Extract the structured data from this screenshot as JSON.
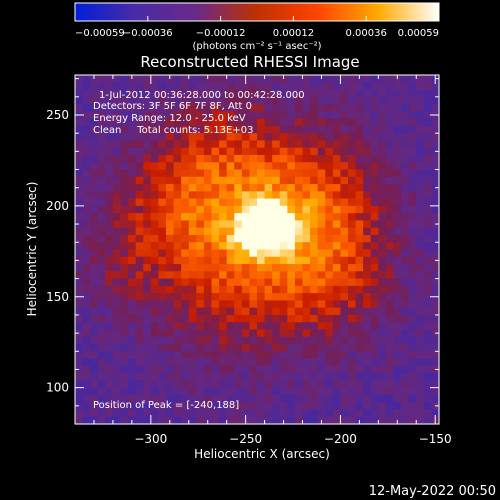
{
  "chart_data": {
    "type": "heatmap",
    "title": "Reconstructed RHESSI Image",
    "xlabel": "Heliocentric X (arcsec)",
    "ylabel": "Heliocentric Y (arcsec)",
    "xlim": [
      -340,
      -148
    ],
    "ylim": [
      80,
      272
    ],
    "x_ticks": [
      -300,
      -250,
      -200,
      -150
    ],
    "x_tick_labels": [
      "−300",
      "−250",
      "−200",
      "−150"
    ],
    "y_ticks": [
      100,
      150,
      200,
      250
    ],
    "y_tick_labels": [
      "100",
      "150",
      "200",
      "250"
    ],
    "colorbar": {
      "range": [
        -0.00059,
        0.00059
      ],
      "tick_labels": [
        "−0.00059",
        "−0.00036",
        "−0.00012",
        "0.00012",
        "0.00036",
        "0.00059"
      ],
      "unit_label": "(photons cm⁻² s⁻¹ asec⁻²)",
      "colors": [
        "#0020d8",
        "#4a2aa8",
        "#6a2a88",
        "#c03000",
        "#ff4400",
        "#ffaa00",
        "#ffffff"
      ]
    },
    "peak": [
      -240,
      188
    ],
    "annotations": [
      "1-Jul-2012 00:36:28.000 to 00:42:28.000",
      "Detectors: 3F 5F 6F 7F 8F, Att 0",
      "Energy Range: 12.0 - 25.0 keV",
      "Clean     Total counts: 5.13E+03"
    ],
    "peak_label": "Position of Peak = [-240,188]"
  },
  "footer_date": "12-May-2022 00:50"
}
